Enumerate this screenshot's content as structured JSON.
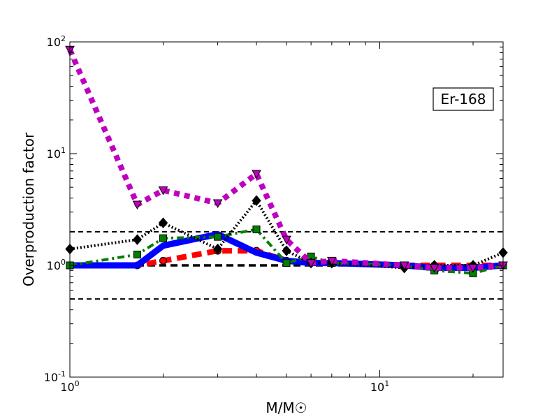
{
  "chart_data": {
    "type": "line",
    "title": "",
    "xlabel": "M/M☉",
    "ylabel": "Overproduction factor",
    "annotation": "Er-168",
    "x_scale": "log",
    "y_scale": "log",
    "xlim": [
      1,
      25
    ],
    "ylim": [
      0.1,
      100
    ],
    "x_ticks": [
      {
        "value": 1,
        "base": "10",
        "exp": "0"
      },
      {
        "value": 10,
        "base": "10",
        "exp": "1"
      }
    ],
    "y_ticks": [
      {
        "value": 0.1,
        "base": "10",
        "exp": "-1"
      },
      {
        "value": 1,
        "base": "10",
        "exp": "0"
      },
      {
        "value": 10,
        "base": "10",
        "exp": "1"
      },
      {
        "value": 100,
        "base": "10",
        "exp": "2"
      }
    ],
    "grid": false,
    "reference_lines": [
      {
        "y": 2,
        "color": "#000000",
        "style": "dashed"
      },
      {
        "y": 1,
        "color": "#000000",
        "style": "dashed-thick"
      },
      {
        "y": 0.5,
        "color": "#000000",
        "style": "dashed"
      }
    ],
    "series": [
      {
        "color": "#ff0000",
        "style": "dash-thick",
        "marker": "circle",
        "x": [
          1,
          1.65,
          2,
          3,
          4,
          5,
          6,
          7,
          12,
          15,
          20,
          25
        ],
        "y": [
          1.0,
          1.0,
          1.1,
          1.35,
          1.35,
          1.1,
          1.05,
          1.05,
          1.0,
          1.0,
          1.0,
          1.0
        ]
      },
      {
        "color": "#0000ff",
        "style": "solid-thick",
        "marker": "none",
        "x": [
          1,
          1.65,
          2,
          3,
          4,
          5,
          6,
          7,
          12,
          15,
          20,
          25
        ],
        "y": [
          1.0,
          1.0,
          1.5,
          1.9,
          1.3,
          1.1,
          1.05,
          1.05,
          1.0,
          0.95,
          0.95,
          1.0
        ]
      },
      {
        "color": "#007f00",
        "style": "dashdot",
        "marker": "square",
        "x": [
          1,
          1.65,
          2,
          3,
          4,
          5,
          6,
          7,
          12,
          15,
          20,
          25
        ],
        "y": [
          1.0,
          1.25,
          1.75,
          1.8,
          2.1,
          1.05,
          1.2,
          1.05,
          1.0,
          0.9,
          0.85,
          1.0
        ]
      },
      {
        "color": "#000000",
        "style": "dotted",
        "marker": "diamond",
        "x": [
          1,
          1.65,
          2,
          3,
          4,
          5,
          6,
          7,
          12,
          15,
          20,
          25
        ],
        "y": [
          1.4,
          1.7,
          2.4,
          1.4,
          3.8,
          1.35,
          1.05,
          1.05,
          0.95,
          1.0,
          1.0,
          1.3
        ]
      },
      {
        "color": "#bf00bf",
        "style": "dotted-thick",
        "marker": "triangle-down",
        "x": [
          1,
          1.65,
          2,
          3,
          4,
          5,
          6,
          7,
          12,
          15,
          20,
          25
        ],
        "y": [
          85,
          3.5,
          4.7,
          3.6,
          6.6,
          1.7,
          1.05,
          1.1,
          1.0,
          0.95,
          0.95,
          1.0
        ]
      }
    ]
  }
}
